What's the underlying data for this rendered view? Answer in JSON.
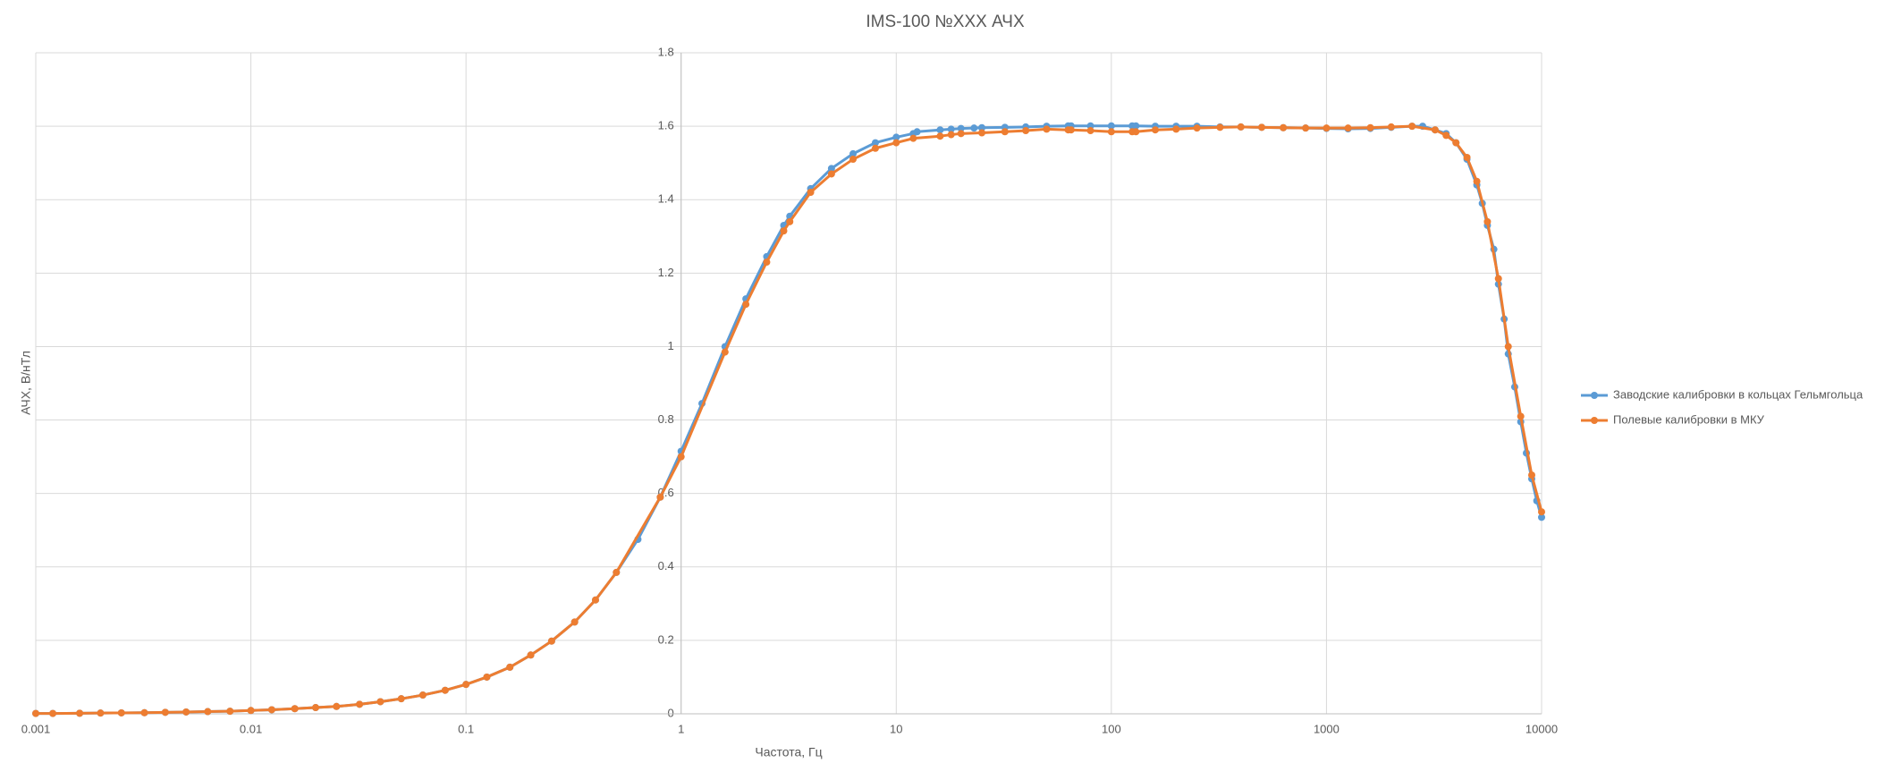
{
  "chart_data": {
    "type": "line",
    "title": "IMS-100 №XXX АЧХ",
    "x_label": "Частота, Гц",
    "y_label": "АЧХ, В/нТл",
    "xscale": "log",
    "xlim": [
      0.001,
      10000
    ],
    "ylim": [
      0,
      1.8
    ],
    "xticks": [
      0.001,
      0.01,
      0.1,
      1,
      10,
      100,
      1000,
      10000
    ],
    "yticks": [
      0,
      0.2,
      0.4,
      0.6,
      0.8,
      1,
      1.2,
      1.4,
      1.6,
      1.8
    ],
    "grid": true,
    "legend": "right",
    "series": [
      {
        "name": "Заводские калибровки в кольцах Гельмгольца",
        "color": "#5b9bd5",
        "x": [
          0.001,
          0.0012,
          0.0016,
          0.002,
          0.0025,
          0.0032,
          0.004,
          0.005,
          0.0063,
          0.008,
          0.01,
          0.0125,
          0.016,
          0.02,
          0.025,
          0.032,
          0.04,
          0.05,
          0.063,
          0.08,
          0.1,
          0.125,
          0.16,
          0.2,
          0.25,
          0.32,
          0.4,
          0.5,
          0.63,
          0.8,
          1,
          1.25,
          1.6,
          2,
          2.5,
          3,
          3.2,
          4,
          5,
          6.3,
          8,
          10,
          12,
          12.5,
          16,
          18,
          20,
          23,
          25,
          32,
          40,
          50,
          63,
          65,
          80,
          100,
          125,
          130,
          160,
          200,
          250,
          320,
          400,
          500,
          630,
          800,
          1000,
          1260,
          1600,
          2000,
          2500,
          2800,
          3200,
          3600,
          4000,
          4500,
          5000,
          5300,
          5600,
          6000,
          6300,
          6700,
          7000,
          7500,
          8000,
          8500,
          9000,
          9500,
          10000
        ],
        "values": [
          0.001,
          0.001,
          0.0015,
          0.002,
          0.0025,
          0.003,
          0.004,
          0.005,
          0.006,
          0.007,
          0.009,
          0.011,
          0.014,
          0.017,
          0.02,
          0.026,
          0.033,
          0.041,
          0.051,
          0.064,
          0.08,
          0.1,
          0.127,
          0.16,
          0.198,
          0.25,
          0.31,
          0.385,
          0.475,
          0.59,
          0.715,
          0.845,
          1.0,
          1.13,
          1.245,
          1.33,
          1.355,
          1.43,
          1.485,
          1.525,
          1.555,
          1.57,
          1.58,
          1.585,
          1.59,
          1.592,
          1.594,
          1.595,
          1.596,
          1.597,
          1.598,
          1.6,
          1.601,
          1.601,
          1.601,
          1.601,
          1.601,
          1.601,
          1.6,
          1.6,
          1.6,
          1.598,
          1.598,
          1.597,
          1.596,
          1.595,
          1.594,
          1.593,
          1.594,
          1.597,
          1.6,
          1.6,
          1.59,
          1.58,
          1.555,
          1.51,
          1.44,
          1.39,
          1.33,
          1.265,
          1.17,
          1.075,
          0.98,
          0.89,
          0.795,
          0.71,
          0.64,
          0.58,
          0.535
        ]
      },
      {
        "name": "Полевые калибровки в МКУ",
        "color": "#ed7d31",
        "x": [
          0.001,
          0.0012,
          0.0016,
          0.002,
          0.0025,
          0.0032,
          0.004,
          0.005,
          0.0063,
          0.008,
          0.01,
          0.0125,
          0.016,
          0.02,
          0.025,
          0.032,
          0.04,
          0.05,
          0.063,
          0.08,
          0.1,
          0.125,
          0.16,
          0.2,
          0.25,
          0.32,
          0.4,
          0.5,
          0.8,
          1,
          1.6,
          2,
          2.5,
          3,
          3.2,
          4,
          5,
          6.3,
          8,
          10,
          12,
          16,
          18,
          20,
          25,
          32,
          40,
          50,
          63,
          65,
          80,
          100,
          125,
          130,
          160,
          200,
          250,
          320,
          400,
          500,
          630,
          800,
          1000,
          1260,
          1600,
          2000,
          2500,
          3200,
          3600,
          4000,
          4500,
          5000,
          5600,
          6300,
          7000,
          8000,
          9000,
          10000
        ],
        "values": [
          0.001,
          0.001,
          0.0015,
          0.002,
          0.0025,
          0.003,
          0.004,
          0.005,
          0.006,
          0.007,
          0.009,
          0.011,
          0.014,
          0.017,
          0.02,
          0.026,
          0.033,
          0.041,
          0.051,
          0.064,
          0.08,
          0.1,
          0.127,
          0.16,
          0.198,
          0.25,
          0.31,
          0.385,
          0.59,
          0.7,
          0.985,
          1.115,
          1.23,
          1.315,
          1.34,
          1.42,
          1.47,
          1.51,
          1.54,
          1.555,
          1.567,
          1.573,
          1.577,
          1.58,
          1.582,
          1.585,
          1.588,
          1.592,
          1.59,
          1.59,
          1.588,
          1.585,
          1.585,
          1.585,
          1.59,
          1.592,
          1.595,
          1.597,
          1.598,
          1.597,
          1.596,
          1.595,
          1.595,
          1.595,
          1.596,
          1.598,
          1.6,
          1.59,
          1.575,
          1.555,
          1.515,
          1.45,
          1.34,
          1.185,
          1.0,
          0.81,
          0.65,
          0.55
        ]
      }
    ]
  }
}
